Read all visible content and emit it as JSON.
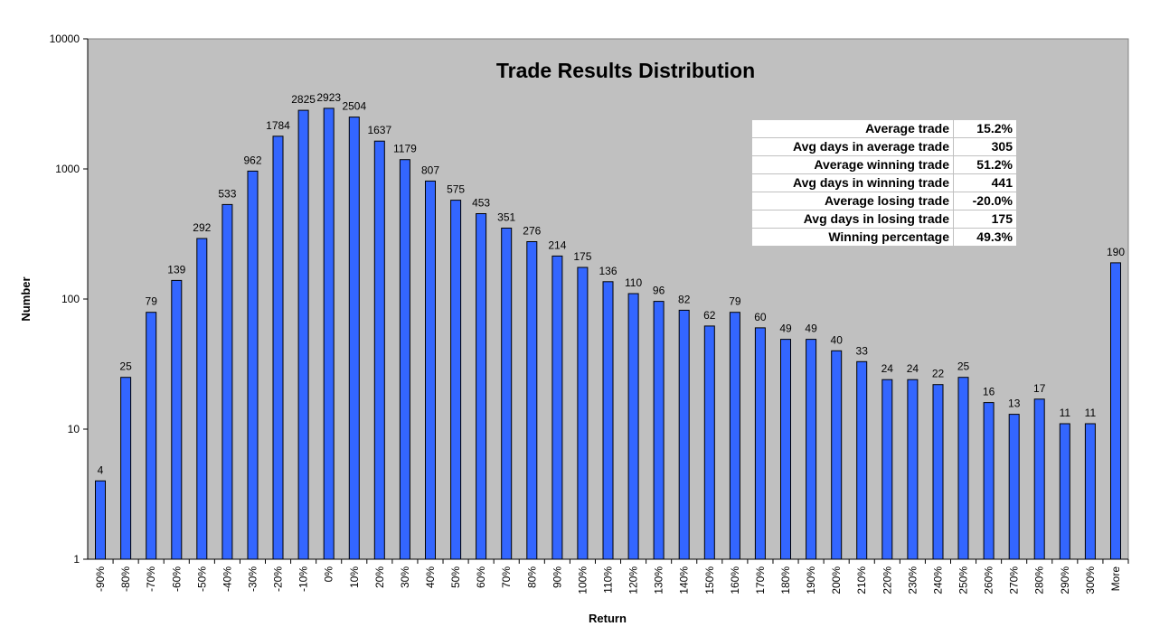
{
  "chart_data": {
    "type": "bar",
    "title": "Trade Results Distribution",
    "xlabel": "Return",
    "ylabel": "Number",
    "y_scale": "log",
    "ylim": [
      1,
      10000
    ],
    "y_ticks": [
      "1",
      "10",
      "100",
      "1000",
      "10000"
    ],
    "categories": [
      "-90%",
      "-80%",
      "-70%",
      "-60%",
      "-50%",
      "-40%",
      "-30%",
      "-20%",
      "-10%",
      "0%",
      "10%",
      "20%",
      "30%",
      "40%",
      "50%",
      "60%",
      "70%",
      "80%",
      "90%",
      "100%",
      "110%",
      "120%",
      "130%",
      "140%",
      "150%",
      "160%",
      "170%",
      "180%",
      "190%",
      "200%",
      "210%",
      "220%",
      "230%",
      "240%",
      "250%",
      "260%",
      "270%",
      "280%",
      "290%",
      "300%",
      "More"
    ],
    "values": [
      4,
      25,
      79,
      139,
      292,
      533,
      962,
      1784,
      2825,
      2923,
      2504,
      1637,
      1179,
      807,
      575,
      453,
      351,
      276,
      214,
      175,
      136,
      110,
      96,
      82,
      62,
      79,
      60,
      49,
      49,
      40,
      33,
      24,
      24,
      22,
      25,
      16,
      13,
      17,
      11,
      11,
      190
    ],
    "bar_color": "#3366ff",
    "plot_background": "#c0c0c0",
    "grid": false,
    "legend": "none"
  },
  "stats": [
    {
      "label": "Average trade",
      "value": "15.2%"
    },
    {
      "label": "Avg days in average trade",
      "value": "305"
    },
    {
      "label": "Average winning trade",
      "value": "51.2%"
    },
    {
      "label": "Avg days in winning trade",
      "value": "441"
    },
    {
      "label": "Average losing trade",
      "value": "-20.0%"
    },
    {
      "label": "Avg days in losing trade",
      "value": "175"
    },
    {
      "label": "Winning percentage",
      "value": "49.3%"
    }
  ]
}
